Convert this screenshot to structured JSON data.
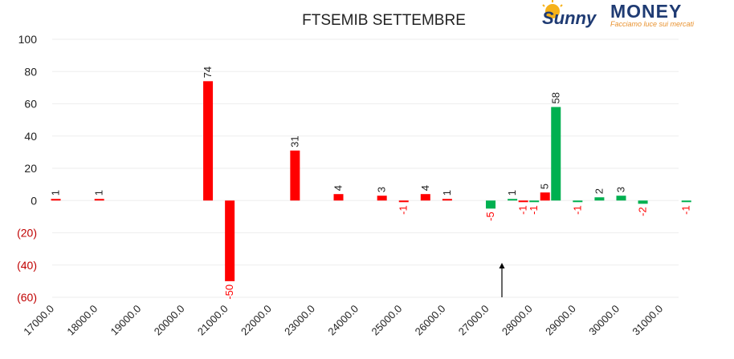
{
  "colors": {
    "positive": "#00b050",
    "negative": "#ff0000",
    "axis_text": "#222222",
    "negative_axis_text": "#c00000",
    "grid": "#eeeeee"
  },
  "logo": {
    "brand_left": "Sunny",
    "brand_right": "MONEY",
    "tagline": "Facciamo luce sui mercati"
  },
  "annotation": {
    "icon": "arrow-up-icon",
    "x": 27500
  },
  "chart_data": {
    "type": "bar",
    "title": "FTSEMIB SETTEMBRE",
    "xlabel": "",
    "ylabel": "",
    "ylim": [
      -60,
      100
    ],
    "yticks": [
      {
        "value": 100,
        "label": "100"
      },
      {
        "value": 80,
        "label": "80"
      },
      {
        "value": 60,
        "label": "60"
      },
      {
        "value": 40,
        "label": "40"
      },
      {
        "value": 20,
        "label": "20"
      },
      {
        "value": 0,
        "label": "0"
      },
      {
        "value": -20,
        "label": "(20)"
      },
      {
        "value": -40,
        "label": "(40)"
      },
      {
        "value": -60,
        "label": "(60)"
      }
    ],
    "xlim": [
      17000,
      31500
    ],
    "xticks": [
      {
        "value": 17000,
        "label": "17000.0"
      },
      {
        "value": 18000,
        "label": "18000.0"
      },
      {
        "value": 19000,
        "label": "19000.0"
      },
      {
        "value": 20000,
        "label": "20000.0"
      },
      {
        "value": 21000,
        "label": "21000.0"
      },
      {
        "value": 22000,
        "label": "22000.0"
      },
      {
        "value": 23000,
        "label": "23000.0"
      },
      {
        "value": 24000,
        "label": "24000.0"
      },
      {
        "value": 25000,
        "label": "25000.0"
      },
      {
        "value": 26000,
        "label": "26000.0"
      },
      {
        "value": 27000,
        "label": "27000.0"
      },
      {
        "value": 28000,
        "label": "28000.0"
      },
      {
        "value": 29000,
        "label": "29000.0"
      },
      {
        "value": 30000,
        "label": "30000.0"
      },
      {
        "value": 31000,
        "label": "31000.0"
      }
    ],
    "grid": true,
    "legend": "none",
    "bars": [
      {
        "x": 17250,
        "value": 1,
        "label": "1",
        "color": "red"
      },
      {
        "x": 18250,
        "value": 1,
        "label": "1",
        "color": "red"
      },
      {
        "x": 20750,
        "value": 74,
        "label": "74",
        "color": "red"
      },
      {
        "x": 21250,
        "value": -50,
        "label": "-50",
        "color": "red"
      },
      {
        "x": 22750,
        "value": 31,
        "label": "31",
        "color": "red"
      },
      {
        "x": 23750,
        "value": 4,
        "label": "4",
        "color": "red"
      },
      {
        "x": 24750,
        "value": 3,
        "label": "3",
        "color": "red"
      },
      {
        "x": 25250,
        "value": -1,
        "label": "-1",
        "color": "red"
      },
      {
        "x": 25750,
        "value": 4,
        "label": "4",
        "color": "red"
      },
      {
        "x": 26250,
        "value": 1,
        "label": "1",
        "color": "red"
      },
      {
        "x": 27250,
        "value": -5,
        "label": "-5",
        "color": "green"
      },
      {
        "x": 27750,
        "value": 1,
        "label": "1",
        "color": "green"
      },
      {
        "x": 28000,
        "value": -1,
        "label": "-1",
        "color": "red"
      },
      {
        "x": 28250,
        "value": -1,
        "label": "-1",
        "color": "green"
      },
      {
        "x": 28500,
        "value": 5,
        "label": "5",
        "color": "red"
      },
      {
        "x": 28750,
        "value": 58,
        "label": "58",
        "color": "green"
      },
      {
        "x": 29250,
        "value": -1,
        "label": "-1",
        "color": "green"
      },
      {
        "x": 29750,
        "value": 2,
        "label": "2",
        "color": "green"
      },
      {
        "x": 30250,
        "value": 3,
        "label": "3",
        "color": "green"
      },
      {
        "x": 30750,
        "value": -2,
        "label": "-2",
        "color": "green"
      },
      {
        "x": 31750,
        "value": -1,
        "label": "-1",
        "color": "green"
      }
    ]
  }
}
